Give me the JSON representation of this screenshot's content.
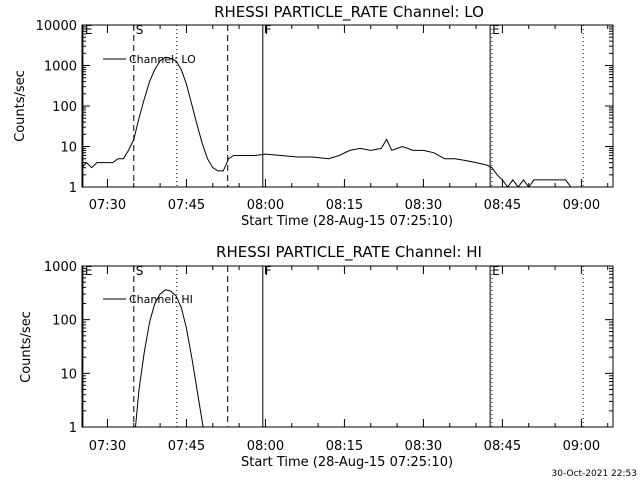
{
  "footer": {
    "timestamp": "30-Oct-2021 22:53"
  },
  "chart_data": [
    {
      "type": "line",
      "title": "RHESSI PARTICLE_RATE Channel: LO",
      "xlabel": "Start Time (28-Aug-15 07:25:10)",
      "ylabel": "Counts/sec",
      "y_scale": "log",
      "ylim": [
        1,
        10000
      ],
      "yticks": [
        {
          "value": 1,
          "label": "1"
        },
        {
          "value": 10,
          "label": "10"
        },
        {
          "value": 100,
          "label": "100"
        },
        {
          "value": 1000,
          "label": "1000"
        },
        {
          "value": 10000,
          "label": "10000"
        }
      ],
      "xlim": [
        "07:25:10",
        "09:06:00"
      ],
      "xticks": [
        "07:30",
        "07:45",
        "08:00",
        "08:15",
        "08:30",
        "08:45",
        "09:00"
      ],
      "legend": {
        "label": "Channel: LO",
        "position": "top-left"
      },
      "markers": [
        {
          "label": "E",
          "time": "07:25:20",
          "style": "solid"
        },
        {
          "label": "S",
          "time": "07:35:00",
          "style": "dashed"
        },
        {
          "label": "",
          "time": "07:43:10",
          "style": "dotted"
        },
        {
          "label": "",
          "time": "07:52:50",
          "style": "dashed"
        },
        {
          "label": "F",
          "time": "07:59:30",
          "style": "solid"
        },
        {
          "label": "E",
          "time": "08:42:40",
          "style": "solid"
        },
        {
          "label": "",
          "time": "08:43:00",
          "style": "dotted"
        },
        {
          "label": "",
          "time": "09:00:20",
          "style": "dotted"
        }
      ],
      "series": [
        {
          "name": "Channel: LO",
          "points": [
            [
              "07:25:10",
              3
            ],
            [
              "07:26:00",
              4
            ],
            [
              "07:27:00",
              3
            ],
            [
              "07:28:00",
              4
            ],
            [
              "07:29:00",
              4
            ],
            [
              "07:30:00",
              4
            ],
            [
              "07:31:00",
              4
            ],
            [
              "07:32:00",
              5
            ],
            [
              "07:33:00",
              5
            ],
            [
              "07:34:00",
              8
            ],
            [
              "07:35:00",
              15
            ],
            [
              "07:36:00",
              50
            ],
            [
              "07:37:00",
              150
            ],
            [
              "07:38:00",
              400
            ],
            [
              "07:39:00",
              800
            ],
            [
              "07:40:00",
              1300
            ],
            [
              "07:41:00",
              1600
            ],
            [
              "07:42:00",
              1500
            ],
            [
              "07:43:00",
              1300
            ],
            [
              "07:44:00",
              800
            ],
            [
              "07:45:00",
              350
            ],
            [
              "07:46:00",
              110
            ],
            [
              "07:47:00",
              35
            ],
            [
              "07:48:00",
              12
            ],
            [
              "07:49:00",
              5
            ],
            [
              "07:50:00",
              3
            ],
            [
              "07:51:00",
              2.5
            ],
            [
              "07:52:00",
              2.5
            ],
            [
              "07:53:00",
              5
            ],
            [
              "07:54:00",
              6
            ],
            [
              "07:56:00",
              6
            ],
            [
              "07:58:00",
              6
            ],
            [
              "08:00:00",
              6.5
            ],
            [
              "08:03:00",
              6
            ],
            [
              "08:06:00",
              5.5
            ],
            [
              "08:09:00",
              5.5
            ],
            [
              "08:12:00",
              5
            ],
            [
              "08:14:00",
              6
            ],
            [
              "08:16:00",
              8
            ],
            [
              "08:18:00",
              9
            ],
            [
              "08:20:00",
              8
            ],
            [
              "08:22:00",
              9
            ],
            [
              "08:23:00",
              15
            ],
            [
              "08:24:00",
              8
            ],
            [
              "08:26:00",
              10
            ],
            [
              "08:28:00",
              8
            ],
            [
              "08:30:00",
              8
            ],
            [
              "08:32:00",
              7
            ],
            [
              "08:34:00",
              5
            ],
            [
              "08:36:00",
              5
            ],
            [
              "08:38:00",
              4.5
            ],
            [
              "08:40:00",
              4
            ],
            [
              "08:42:00",
              3.5
            ],
            [
              "08:43:00",
              3
            ],
            [
              "08:44:00",
              2
            ],
            [
              "08:45:00",
              1.5
            ],
            [
              "08:46:00",
              1
            ],
            [
              "08:47:00",
              1.5
            ],
            [
              "08:48:00",
              1
            ],
            [
              "08:49:00",
              1.5
            ],
            [
              "08:50:00",
              1
            ],
            [
              "08:51:00",
              1.5
            ],
            [
              "08:53:00",
              1.5
            ],
            [
              "08:55:00",
              1.5
            ],
            [
              "08:57:00",
              1.5
            ],
            [
              "08:58:00",
              1
            ],
            [
              "09:00:00",
              1
            ],
            [
              "09:02:00",
              1
            ],
            [
              "09:05:00",
              1
            ]
          ]
        }
      ]
    },
    {
      "type": "line",
      "title": "RHESSI PARTICLE_RATE Channel: HI",
      "xlabel": "Start Time (28-Aug-15 07:25:10)",
      "ylabel": "Counts/sec",
      "y_scale": "log",
      "ylim": [
        1,
        1000
      ],
      "yticks": [
        {
          "value": 1,
          "label": "1"
        },
        {
          "value": 10,
          "label": "10"
        },
        {
          "value": 100,
          "label": "100"
        },
        {
          "value": 1000,
          "label": "1000"
        }
      ],
      "xlim": [
        "07:25:10",
        "09:06:00"
      ],
      "xticks": [
        "07:30",
        "07:45",
        "08:00",
        "08:15",
        "08:30",
        "08:45",
        "09:00"
      ],
      "legend": {
        "label": "Channel: HI",
        "position": "top-left"
      },
      "markers": [
        {
          "label": "E",
          "time": "07:25:20",
          "style": "solid"
        },
        {
          "label": "S",
          "time": "07:35:00",
          "style": "dashed"
        },
        {
          "label": "",
          "time": "07:43:10",
          "style": "dotted"
        },
        {
          "label": "",
          "time": "07:52:50",
          "style": "dashed"
        },
        {
          "label": "F",
          "time": "07:59:30",
          "style": "solid"
        },
        {
          "label": "E",
          "time": "08:42:40",
          "style": "solid"
        },
        {
          "label": "",
          "time": "08:43:00",
          "style": "dotted"
        },
        {
          "label": "",
          "time": "09:00:20",
          "style": "dotted"
        }
      ],
      "series": [
        {
          "name": "Channel: HI",
          "points": [
            [
              "07:35:20",
              1
            ],
            [
              "07:36:00",
              5
            ],
            [
              "07:37:00",
              25
            ],
            [
              "07:38:00",
              90
            ],
            [
              "07:39:00",
              200
            ],
            [
              "07:40:00",
              300
            ],
            [
              "07:41:00",
              360
            ],
            [
              "07:42:00",
              340
            ],
            [
              "07:43:00",
              280
            ],
            [
              "07:44:00",
              170
            ],
            [
              "07:45:00",
              70
            ],
            [
              "07:46:00",
              20
            ],
            [
              "07:47:00",
              5
            ],
            [
              "07:48:10",
              1
            ]
          ]
        }
      ]
    }
  ]
}
